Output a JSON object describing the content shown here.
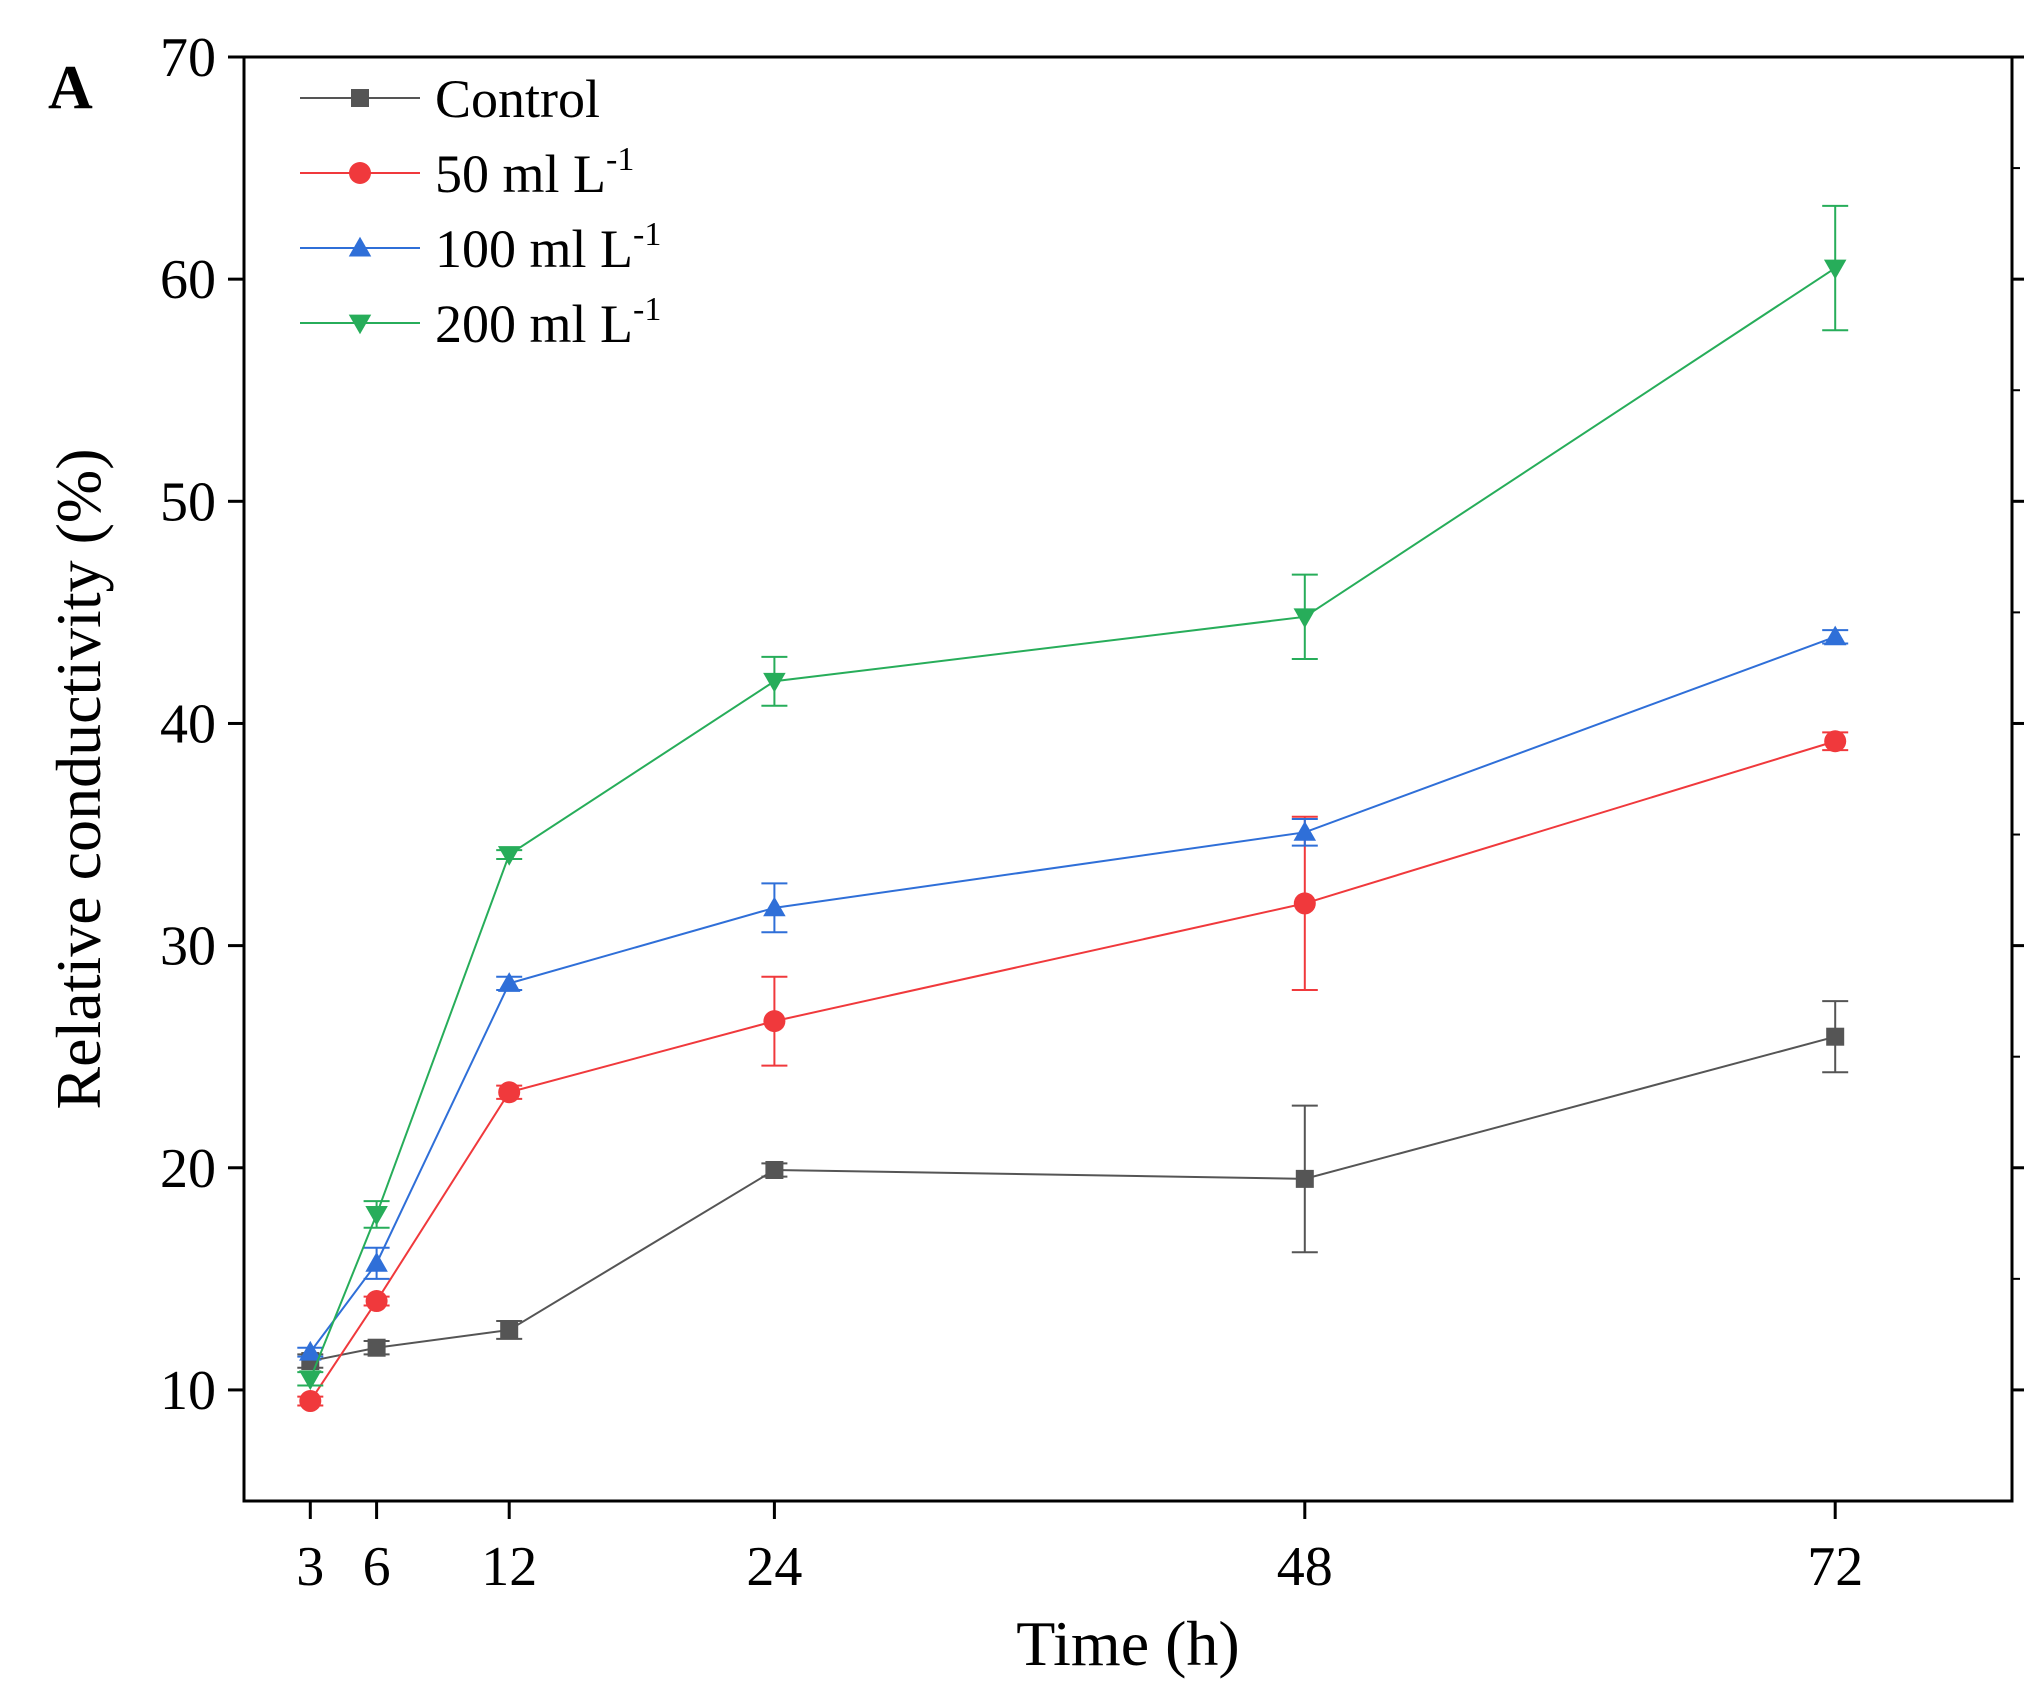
{
  "chart_data": {
    "type": "line",
    "panel_label": "A",
    "title": "",
    "xlabel": "Time (h)",
    "ylabel": "Relative conductivity (%)",
    "x": [
      3,
      6,
      12,
      24,
      48,
      72
    ],
    "xticks": [
      "3",
      "6",
      "12",
      "24",
      "48",
      "72"
    ],
    "xlim": [
      0,
      80
    ],
    "ylim": [
      5,
      70
    ],
    "yticks": [
      "10",
      "20",
      "30",
      "40",
      "50",
      "60",
      "70"
    ],
    "legend_position": "top-left",
    "series": [
      {
        "name": "Control",
        "label_main": "Control",
        "label_sup": "",
        "color": "#555555",
        "marker": "square",
        "values": [
          11.3,
          11.9,
          12.7,
          19.9,
          19.5,
          25.9
        ],
        "errors": [
          0.3,
          0.3,
          0.4,
          0.3,
          3.3,
          1.6
        ]
      },
      {
        "name": "50 ml L-1",
        "label_main": "50 ml L",
        "label_sup": "-1",
        "color": "#f0393c",
        "marker": "circle",
        "values": [
          9.5,
          14.0,
          23.4,
          26.6,
          31.9,
          39.2
        ],
        "errors": [
          0.2,
          0.2,
          0.3,
          2.0,
          3.9,
          0.4
        ]
      },
      {
        "name": "100 ml L-1",
        "label_main": "100 ml L",
        "label_sup": "-1",
        "color": "#2f6fd8",
        "marker": "triangle-up",
        "values": [
          11.7,
          15.7,
          28.3,
          31.7,
          35.1,
          43.9
        ],
        "errors": [
          0.2,
          0.7,
          0.3,
          1.1,
          0.6,
          0.3
        ]
      },
      {
        "name": "200 ml L-1",
        "label_main": "200 ml L",
        "label_sup": "-1",
        "color": "#27ad5a",
        "marker": "triangle-down",
        "values": [
          10.5,
          17.9,
          34.1,
          41.9,
          44.8,
          60.5
        ],
        "errors": [
          0.3,
          0.6,
          0.2,
          1.1,
          1.9,
          2.8
        ]
      }
    ]
  }
}
